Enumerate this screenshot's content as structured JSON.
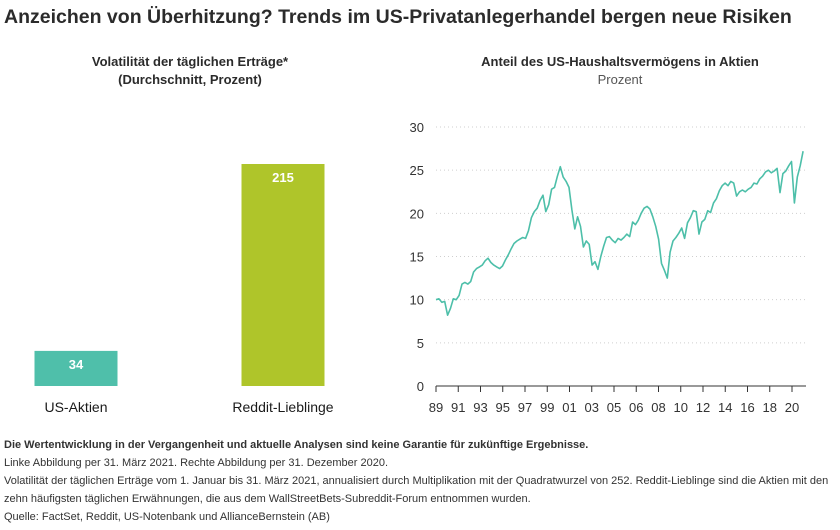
{
  "title": "Anzeichen von Überhitzung? Trends im US-Privatanlegerhandel bergen neue Risiken",
  "chart_data": [
    {
      "type": "bar",
      "title": "Volatilität der täglichen Erträge*",
      "subtitle": "(Durchschnitt, Prozent)",
      "categories": [
        "US-Aktien",
        "Reddit-Lieblinge"
      ],
      "values": [
        34,
        215
      ],
      "colors": [
        "#4fbfaa",
        "#afc52a"
      ],
      "ylim": [
        0,
        215
      ]
    },
    {
      "type": "line",
      "title": "Anteil des US-Haushaltsvermögens in Aktien",
      "subtitle": "Prozent",
      "color": "#4dbfa9",
      "ylim": [
        0,
        30
      ],
      "yticks": [
        0,
        5,
        10,
        15,
        20,
        25,
        30
      ],
      "xlim": [
        1989,
        2021
      ],
      "xticks": [
        "89",
        "91",
        "93",
        "95",
        "97",
        "99",
        "01",
        "03",
        "05",
        "06",
        "08",
        "10",
        "12",
        "14",
        "16",
        "18",
        "20"
      ],
      "x": [
        1989.0,
        1989.25,
        1989.5,
        1989.75,
        1990.0,
        1990.25,
        1990.5,
        1990.75,
        1991.0,
        1991.25,
        1991.5,
        1991.75,
        1992.0,
        1992.25,
        1992.5,
        1992.75,
        1993.0,
        1993.25,
        1993.5,
        1993.75,
        1994.0,
        1994.25,
        1994.5,
        1994.75,
        1995.0,
        1995.25,
        1995.5,
        1995.75,
        1996.0,
        1996.25,
        1996.5,
        1996.75,
        1997.0,
        1997.25,
        1997.5,
        1997.75,
        1998.0,
        1998.25,
        1998.5,
        1998.75,
        1999.0,
        1999.25,
        1999.5,
        1999.75,
        2000.0,
        2000.25,
        2000.5,
        2000.75,
        2001.0,
        2001.25,
        2001.5,
        2001.75,
        2002.0,
        2002.25,
        2002.5,
        2002.75,
        2003.0,
        2003.25,
        2003.5,
        2003.75,
        2004.0,
        2004.25,
        2004.5,
        2004.75,
        2005.0,
        2005.25,
        2005.5,
        2005.75,
        2006.0,
        2006.25,
        2006.5,
        2006.75,
        2007.0,
        2007.25,
        2007.5,
        2007.75,
        2008.0,
        2008.25,
        2008.5,
        2008.75,
        2009.0,
        2009.25,
        2009.5,
        2009.75,
        2010.0,
        2010.25,
        2010.5,
        2010.75,
        2011.0,
        2011.25,
        2011.5,
        2011.75,
        2012.0,
        2012.25,
        2012.5,
        2012.75,
        2013.0,
        2013.25,
        2013.5,
        2013.75,
        2014.0,
        2014.25,
        2014.5,
        2014.75,
        2015.0,
        2015.25,
        2015.5,
        2015.75,
        2016.0,
        2016.25,
        2016.5,
        2016.75,
        2017.0,
        2017.25,
        2017.5,
        2017.75,
        2018.0,
        2018.25,
        2018.5,
        2018.75,
        2019.0,
        2019.25,
        2019.5,
        2019.75,
        2020.0,
        2020.25,
        2020.5,
        2020.75
      ],
      "y": [
        10.0,
        10.1,
        9.7,
        9.8,
        8.2,
        9.0,
        10.1,
        10.0,
        10.5,
        11.8,
        12.0,
        11.8,
        12.1,
        13.2,
        13.6,
        13.8,
        14.0,
        14.5,
        14.8,
        14.3,
        14.0,
        13.8,
        13.6,
        13.9,
        14.6,
        15.2,
        15.9,
        16.5,
        16.8,
        17.0,
        17.2,
        17.1,
        18.0,
        19.5,
        20.2,
        20.6,
        21.5,
        22.1,
        20.2,
        21.0,
        22.8,
        23.0,
        24.3,
        25.4,
        24.2,
        23.7,
        23.0,
        20.4,
        18.2,
        19.6,
        18.5,
        16.1,
        16.8,
        16.4,
        14.0,
        14.4,
        13.5,
        15.0,
        16.2,
        17.2,
        17.3,
        16.9,
        16.6,
        17.1,
        16.9,
        17.2,
        17.6,
        17.3,
        19.0,
        18.7,
        19.2,
        20.0,
        20.6,
        20.8,
        20.5,
        19.6,
        18.5,
        17.0,
        14.2,
        13.4,
        12.5,
        15.5,
        16.8,
        17.2,
        17.7,
        18.3,
        17.1,
        18.9,
        19.5,
        20.3,
        20.2,
        17.6,
        19.0,
        19.3,
        20.3,
        20.1,
        21.2,
        21.7,
        22.6,
        23.2,
        23.5,
        23.2,
        23.7,
        23.5,
        22.0,
        22.5,
        22.7,
        22.5,
        22.8,
        23.0,
        23.5,
        23.4,
        24.0,
        24.3,
        24.8,
        25.0,
        24.7,
        24.9,
        25.2,
        22.4,
        24.6,
        24.9,
        25.5,
        26.0,
        21.2,
        24.2,
        25.5,
        27.2
      ]
    }
  ],
  "footnotes": [
    "Die Wertentwicklung in der Vergangenheit und aktuelle Analysen sind keine Garantie für zukünftige Ergebnisse.",
    "Linke Abbildung per 31. März 2021. Rechte Abbildung per 31. Dezember 2020.",
    "Volatilität der täglichen Erträge vom 1. Januar bis 31. März 2021, annualisiert durch Multiplikation mit der Quadratwurzel von 252. Reddit-Lieblinge sind die Aktien mit den zehn häufigsten täglichen Erwähnungen, die aus dem WallStreetBets-Subreddit-Forum entnommen wurden.",
    "Quelle: FactSet, Reddit, US-Notenbank und AllianceBernstein (AB)"
  ]
}
